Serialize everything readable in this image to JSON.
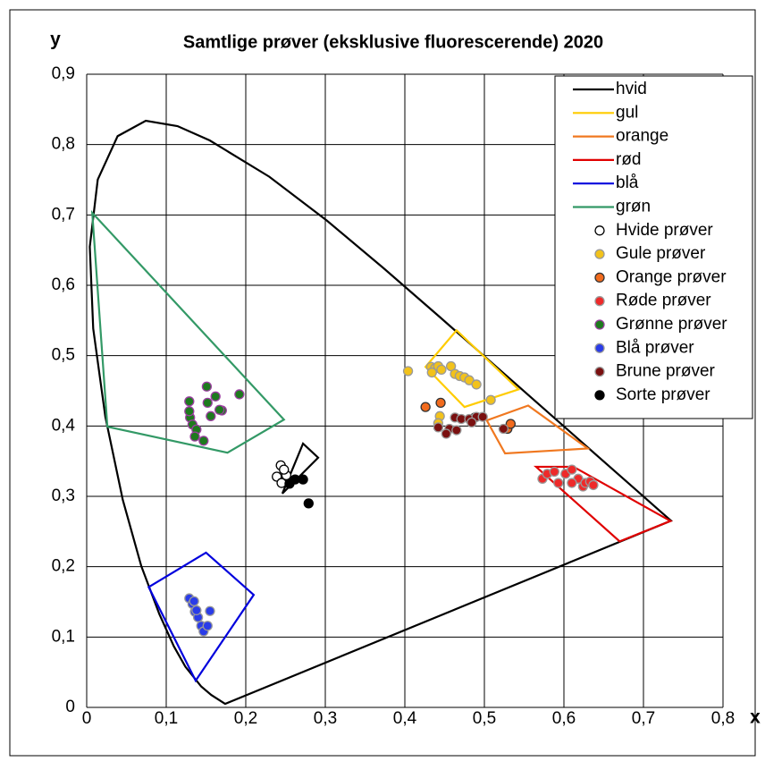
{
  "chart_data": {
    "type": "scatter",
    "title": "Samtlige prøver (eksklusive fluorescerende) 2020",
    "xlabel": "x",
    "ylabel": "y",
    "xlim": [
      0,
      0.8
    ],
    "ylim": [
      0,
      0.9
    ],
    "xticks": [
      0,
      {
        "value": 0.1,
        "label": "0,1"
      },
      {
        "value": 0.2,
        "label": "0,2"
      },
      {
        "value": 0.3,
        "label": "0,3"
      },
      {
        "value": 0.4,
        "label": "0,4"
      },
      {
        "value": 0.5,
        "label": "0,5"
      },
      {
        "value": 0.6,
        "label": "0,6"
      },
      {
        "value": 0.7,
        "label": "0,7"
      },
      {
        "value": 0.8,
        "label": "0,8"
      }
    ],
    "yticks": [
      0,
      {
        "value": 0.1,
        "label": "0,1"
      },
      {
        "value": 0.2,
        "label": "0,2"
      },
      {
        "value": 0.3,
        "label": "0,3"
      },
      {
        "value": 0.4,
        "label": "0,4"
      },
      {
        "value": 0.5,
        "label": "0,5"
      },
      {
        "value": 0.6,
        "label": "0,6"
      },
      {
        "value": 0.7,
        "label": "0,7"
      },
      {
        "value": 0.8,
        "label": "0,8"
      },
      {
        "value": 0.9,
        "label": "0,9"
      }
    ],
    "grid": true,
    "legend": "upper right",
    "spectral_locus": {
      "color": "#000000",
      "x": [
        0.1741,
        0.1566,
        0.144,
        0.1241,
        0.1096,
        0.0913,
        0.0687,
        0.0454,
        0.0235,
        0.0082,
        0.0039,
        0.0139,
        0.0389,
        0.0743,
        0.1142,
        0.1547,
        0.2296,
        0.3016,
        0.3731,
        0.4441,
        0.5125,
        0.5752,
        0.627,
        0.6915,
        0.719,
        0.7347
      ],
      "y": [
        0.005,
        0.0177,
        0.0297,
        0.0578,
        0.0868,
        0.1327,
        0.2007,
        0.295,
        0.4127,
        0.5384,
        0.6548,
        0.7502,
        0.812,
        0.8338,
        0.8262,
        0.8059,
        0.7543,
        0.6923,
        0.6245,
        0.5547,
        0.4866,
        0.4242,
        0.3725,
        0.3083,
        0.2809,
        0.2653
      ]
    },
    "series": [
      {
        "name": "hvid",
        "type": "line",
        "closed": true,
        "color": "#000000",
        "x": [
          0.253,
          0.272,
          0.291,
          0.246
        ],
        "y": [
          0.323,
          0.375,
          0.355,
          0.304
        ]
      },
      {
        "name": "gul",
        "type": "line",
        "closed": true,
        "color": "#ffcc00",
        "x": [
          0.465,
          0.426,
          0.475,
          0.543
        ],
        "y": [
          0.536,
          0.484,
          0.427,
          0.452
        ]
      },
      {
        "name": "orange",
        "type": "line",
        "closed": true,
        "color": "#f07820",
        "x": [
          0.555,
          0.503,
          0.526,
          0.63
        ],
        "y": [
          0.429,
          0.408,
          0.361,
          0.368
        ]
      },
      {
        "name": "rød",
        "type": "line",
        "closed": true,
        "color": "#e00000",
        "x": [
          0.565,
          0.67,
          0.734,
          0.612
        ],
        "y": [
          0.342,
          0.236,
          0.265,
          0.342
        ]
      },
      {
        "name": "blå",
        "type": "line",
        "closed": true,
        "color": "#0000dd",
        "x": [
          0.078,
          0.15,
          0.21,
          0.137
        ],
        "y": [
          0.171,
          0.22,
          0.16,
          0.038
        ]
      },
      {
        "name": "grøn",
        "type": "line",
        "closed": true,
        "color": "#339966",
        "x": [
          0.007,
          0.248,
          0.177,
          0.026
        ],
        "y": [
          0.703,
          0.409,
          0.362,
          0.399
        ]
      },
      {
        "name": "Hvide prøver",
        "type": "scatter",
        "color": "#ffffff",
        "edge": "#000000",
        "x": [
          0.244,
          0.239,
          0.245,
          0.251,
          0.248
        ],
        "y": [
          0.344,
          0.328,
          0.319,
          0.33,
          0.338
        ]
      },
      {
        "name": "Gule prøver",
        "type": "scatter",
        "color": "#f2c21b",
        "edge": "#999999",
        "x": [
          0.404,
          0.433,
          0.438,
          0.442,
          0.434,
          0.446,
          0.458,
          0.463,
          0.469,
          0.475,
          0.481,
          0.49,
          0.508,
          0.444,
          0.442
        ],
        "y": [
          0.478,
          0.484,
          0.482,
          0.485,
          0.476,
          0.48,
          0.485,
          0.474,
          0.471,
          0.469,
          0.465,
          0.459,
          0.437,
          0.414,
          0.404
        ]
      },
      {
        "name": "Orange prøver",
        "type": "scatter",
        "color": "#f26b1d",
        "edge": "#333333",
        "x": [
          0.426,
          0.445,
          0.488,
          0.529,
          0.533
        ],
        "y": [
          0.427,
          0.433,
          0.412,
          0.396,
          0.403
        ]
      },
      {
        "name": "Røde prøver",
        "type": "scatter",
        "color": "#ee2a2a",
        "edge": "#999999",
        "x": [
          0.573,
          0.579,
          0.588,
          0.593,
          0.602,
          0.61,
          0.618,
          0.624,
          0.627,
          0.633,
          0.637,
          0.61
        ],
        "y": [
          0.325,
          0.332,
          0.335,
          0.319,
          0.332,
          0.338,
          0.325,
          0.314,
          0.319,
          0.321,
          0.316,
          0.319
        ]
      },
      {
        "name": "Grønne prøver",
        "type": "scatter",
        "color": "#1e7a1e",
        "edge": "#9b3fa0",
        "x": [
          0.129,
          0.13,
          0.133,
          0.138,
          0.151,
          0.152,
          0.162,
          0.17,
          0.192,
          0.129,
          0.136,
          0.147,
          0.156,
          0.167
        ],
        "y": [
          0.435,
          0.412,
          0.402,
          0.395,
          0.456,
          0.433,
          0.442,
          0.422,
          0.445,
          0.421,
          0.385,
          0.379,
          0.414,
          0.423
        ]
      },
      {
        "name": "Blå prøver",
        "type": "scatter",
        "color": "#2a3ce8",
        "edge": "#999999",
        "x": [
          0.129,
          0.133,
          0.136,
          0.14,
          0.144,
          0.147,
          0.152,
          0.155,
          0.135,
          0.138
        ],
        "y": [
          0.155,
          0.147,
          0.136,
          0.128,
          0.116,
          0.108,
          0.116,
          0.137,
          0.151,
          0.138
        ]
      },
      {
        "name": "Brune prøver",
        "type": "scatter",
        "color": "#7a1010",
        "edge": "#999999",
        "x": [
          0.442,
          0.456,
          0.463,
          0.471,
          0.481,
          0.49,
          0.452,
          0.465,
          0.484,
          0.498,
          0.524
        ],
        "y": [
          0.398,
          0.396,
          0.412,
          0.41,
          0.41,
          0.413,
          0.389,
          0.394,
          0.405,
          0.413,
          0.396
        ]
      },
      {
        "name": "Sorte prøver",
        "type": "scatter",
        "color": "#000000",
        "edge": "#000000",
        "x": [
          0.279,
          0.255,
          0.262,
          0.272
        ],
        "y": [
          0.29,
          0.318,
          0.324,
          0.324
        ]
      }
    ]
  }
}
